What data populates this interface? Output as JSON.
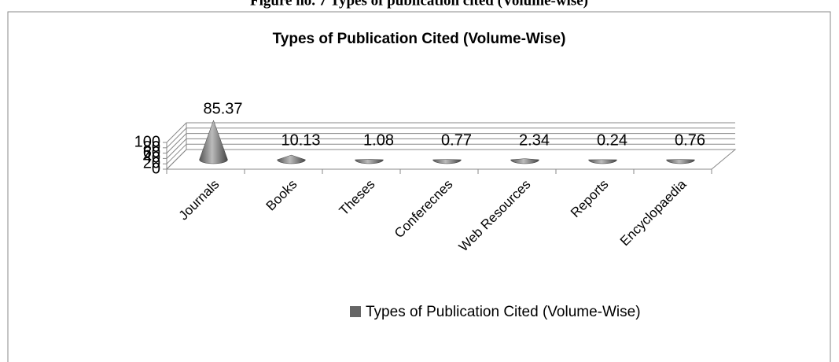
{
  "caption": "Figure no. 7 Types of publication cited (Volume-wise)",
  "chart_data": {
    "type": "cone3d",
    "title": "Types of Publication Cited (Volume-Wise)",
    "categories": [
      "Journals",
      "Books",
      "Theses",
      "Conferecnes",
      "Web Resources",
      "Reports",
      "Encyclopaedia"
    ],
    "series": [
      {
        "name": "Types of Publication Cited (Volume-Wise)",
        "color": "#666666",
        "values": [
          85.37,
          10.13,
          1.08,
          0.77,
          2.34,
          0.24,
          0.76
        ]
      }
    ],
    "ylim": [
      0,
      100
    ],
    "yticks": [
      0,
      20,
      40,
      60,
      80,
      100
    ],
    "grid": true
  }
}
